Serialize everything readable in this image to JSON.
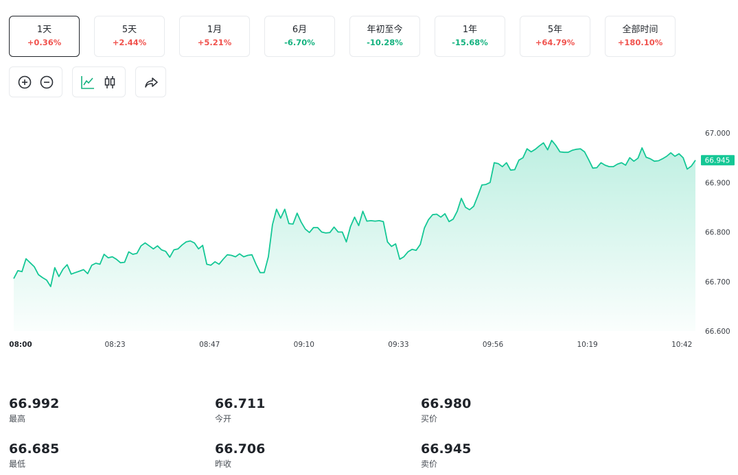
{
  "periods": [
    {
      "label": "1天",
      "change": "+0.36%",
      "dir": "up",
      "active": true
    },
    {
      "label": "5天",
      "change": "+2.44%",
      "dir": "up",
      "active": false
    },
    {
      "label": "1月",
      "change": "+5.21%",
      "dir": "up",
      "active": false
    },
    {
      "label": "6月",
      "change": "-6.70%",
      "dir": "down",
      "active": false
    },
    {
      "label": "年初至今",
      "change": "-10.28%",
      "dir": "down",
      "active": false
    },
    {
      "label": "1年",
      "change": "-15.68%",
      "dir": "down",
      "active": false
    },
    {
      "label": "5年",
      "change": "+64.79%",
      "dir": "up",
      "active": false
    },
    {
      "label": "全部时间",
      "change": "+180.10%",
      "dir": "up",
      "active": false
    }
  ],
  "toolbar": {
    "icons": [
      "zoom-in-icon",
      "zoom-out-icon",
      "line-chart-icon",
      "candlestick-icon",
      "share-icon"
    ],
    "accent": "#14b27f"
  },
  "chart_data": {
    "type": "area",
    "x_ticks": [
      "08:00",
      "08:23",
      "08:47",
      "09:10",
      "09:33",
      "09:56",
      "10:19",
      "10:42"
    ],
    "y_ticks": [
      "67.000",
      "66.900",
      "66.800",
      "66.700",
      "66.600"
    ],
    "ylim": [
      66.6,
      67.0
    ],
    "x_range_minutes": [
      0,
      172
    ],
    "current_price_label": "66.945",
    "color": "#14c795",
    "values": [
      66.706,
      66.722,
      66.72,
      66.746,
      66.738,
      66.73,
      66.714,
      66.708,
      66.703,
      66.69,
      66.728,
      66.71,
      66.725,
      66.734,
      66.715,
      66.718,
      66.721,
      66.724,
      66.716,
      66.733,
      66.737,
      66.735,
      66.755,
      66.748,
      66.75,
      66.745,
      66.738,
      66.739,
      66.76,
      66.755,
      66.757,
      66.772,
      66.778,
      66.772,
      66.766,
      66.772,
      66.764,
      66.761,
      66.749,
      66.764,
      66.766,
      66.774,
      66.78,
      66.782,
      66.778,
      66.766,
      66.773,
      66.735,
      66.733,
      66.74,
      66.735,
      66.745,
      66.754,
      66.753,
      66.75,
      66.756,
      66.75,
      66.753,
      66.754,
      66.735,
      66.718,
      66.718,
      66.75,
      66.815,
      66.846,
      66.828,
      66.846,
      66.817,
      66.816,
      66.838,
      66.82,
      66.806,
      66.799,
      66.809,
      66.809,
      66.8,
      66.798,
      66.799,
      66.81,
      66.8,
      66.8,
      66.78,
      66.811,
      66.83,
      66.813,
      66.842,
      66.822,
      66.823,
      66.822,
      66.823,
      66.821,
      66.78,
      66.771,
      66.776,
      66.745,
      66.75,
      66.76,
      66.765,
      66.763,
      66.775,
      66.808,
      66.825,
      66.835,
      66.836,
      66.83,
      66.837,
      66.821,
      66.826,
      66.842,
      66.868,
      66.85,
      66.845,
      66.852,
      66.873,
      66.895,
      66.896,
      66.9,
      66.94,
      66.938,
      66.932,
      66.94,
      66.925,
      66.926,
      66.945,
      66.95,
      66.968,
      66.962,
      66.967,
      66.974,
      66.98,
      66.966,
      66.985,
      66.975,
      66.962,
      66.961,
      66.961,
      66.965,
      66.967,
      66.968,
      66.962,
      66.946,
      66.929,
      66.93,
      66.94,
      66.935,
      66.932,
      66.932,
      66.937,
      66.94,
      66.935,
      66.95,
      66.943,
      66.949,
      66.97,
      66.951,
      66.948,
      66.943,
      66.944,
      66.948,
      66.953,
      66.96,
      66.953,
      66.958,
      66.95,
      66.927,
      66.933,
      66.945
    ]
  },
  "stats": [
    {
      "value": "66.992",
      "label": "最高"
    },
    {
      "value": "66.711",
      "label": "今开"
    },
    {
      "value": "66.980",
      "label": "买价"
    },
    {
      "value": "66.685",
      "label": "最低"
    },
    {
      "value": "66.706",
      "label": "昨收"
    },
    {
      "value": "66.945",
      "label": "卖价"
    }
  ]
}
